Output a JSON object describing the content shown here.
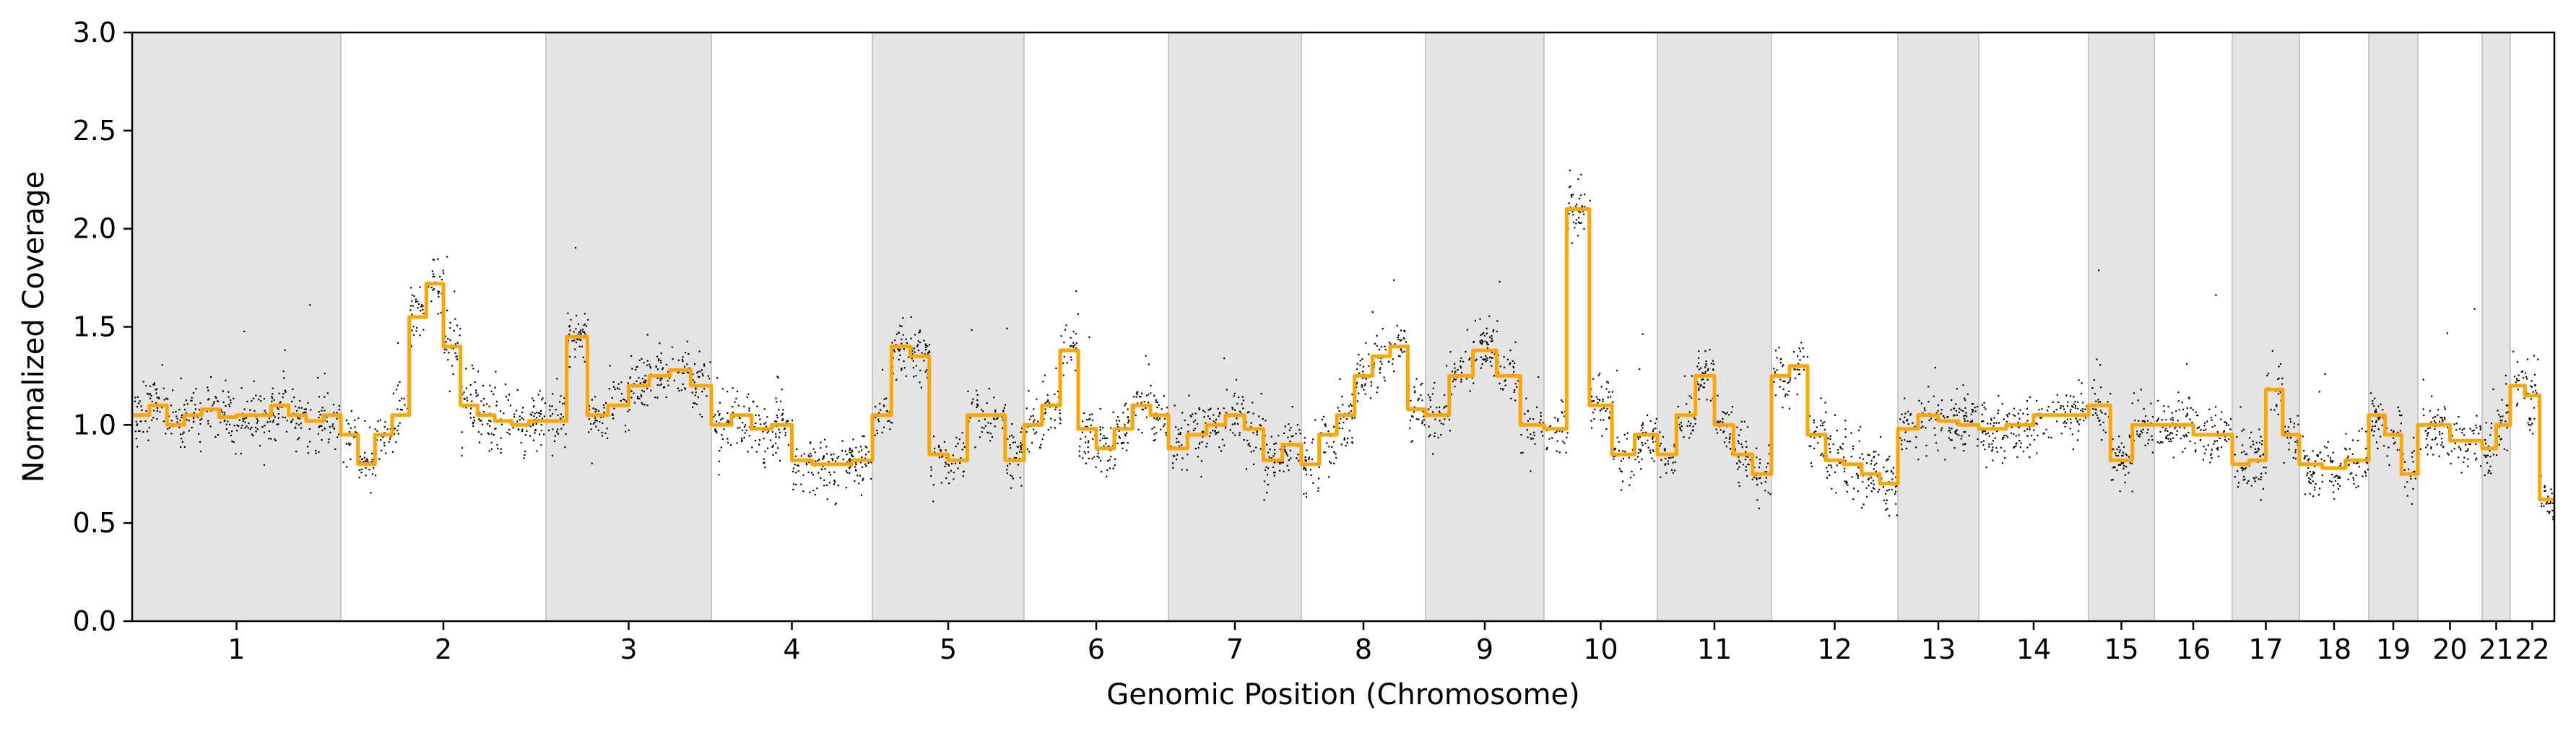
{
  "chart_data": {
    "type": "scatter",
    "title": "",
    "xlabel": "Genomic Position (Chromosome)",
    "ylabel": "Normalized Coverage",
    "ylim": [
      0.0,
      3.0
    ],
    "yticks": [
      "0.0",
      "0.5",
      "1.0",
      "1.5",
      "2.0",
      "2.5",
      "3.0"
    ],
    "grid": false,
    "legend": "none",
    "colors": {
      "points": "#000000",
      "segments": "#ffa500",
      "band": "#e4e4e4",
      "band_edge": "#c8c8c8"
    },
    "chromosomes": [
      {
        "label": "1",
        "shaded": true,
        "level": 1.05
      },
      {
        "label": "2",
        "shaded": false,
        "level": 1.1
      },
      {
        "label": "3",
        "shaded": true,
        "level": 1.15
      },
      {
        "label": "4",
        "shaded": false,
        "level": 0.88
      },
      {
        "label": "5",
        "shaded": true,
        "level": 1.0
      },
      {
        "label": "6",
        "shaded": false,
        "level": 1.0
      },
      {
        "label": "7",
        "shaded": true,
        "level": 0.92
      },
      {
        "label": "8",
        "shaded": false,
        "level": 1.15
      },
      {
        "label": "9",
        "shaded": true,
        "level": 1.15
      },
      {
        "label": "10",
        "shaded": false,
        "level": 1.0
      },
      {
        "label": "11",
        "shaded": true,
        "level": 0.95
      },
      {
        "label": "12",
        "shaded": false,
        "level": 0.9
      },
      {
        "label": "13",
        "shaded": true,
        "level": 1.0
      },
      {
        "label": "14",
        "shaded": false,
        "level": 1.02
      },
      {
        "label": "15",
        "shaded": true,
        "level": 1.0
      },
      {
        "label": "16",
        "shaded": false,
        "level": 0.82
      },
      {
        "label": "17",
        "shaded": true,
        "level": 1.0
      },
      {
        "label": "18",
        "shaded": false,
        "level": 0.82
      },
      {
        "label": "19",
        "shaded": true,
        "level": 0.95
      },
      {
        "label": "20",
        "shaded": false,
        "level": 0.95
      },
      {
        "label": "21",
        "shaded": true,
        "level": 1.0
      },
      {
        "label": "22",
        "shaded": false,
        "level": 1.1
      }
    ],
    "segments": [
      {
        "chrom": "1",
        "values": [
          1.05,
          1.1,
          1.0,
          1.05,
          1.08,
          1.04,
          1.05,
          1.05,
          1.1,
          1.05,
          1.02,
          1.05
        ]
      },
      {
        "chrom": "2",
        "values": [
          0.95,
          0.8,
          0.95,
          1.05,
          1.55,
          1.72,
          1.4,
          1.1,
          1.05,
          1.02,
          1.0,
          1.02
        ]
      },
      {
        "chrom": "3",
        "values": [
          1.02,
          1.45,
          1.05,
          1.1,
          1.2,
          1.25,
          1.28,
          1.2
        ]
      },
      {
        "chrom": "4",
        "values": [
          1.0,
          1.05,
          0.98,
          1.0,
          0.82,
          0.8,
          0.8,
          0.82
        ]
      },
      {
        "chrom": "5",
        "values": [
          1.05,
          1.4,
          1.35,
          0.85,
          0.82,
          1.05,
          1.05,
          0.82
        ]
      },
      {
        "chrom": "6",
        "values": [
          1.0,
          1.1,
          1.38,
          0.98,
          0.88,
          0.98,
          1.1,
          1.05
        ]
      },
      {
        "chrom": "7",
        "values": [
          0.88,
          0.95,
          1.0,
          1.05,
          0.98,
          0.82,
          0.9
        ]
      },
      {
        "chrom": "8",
        "values": [
          0.8,
          0.95,
          1.05,
          1.25,
          1.35,
          1.4,
          1.08
        ]
      },
      {
        "chrom": "9",
        "values": [
          1.05,
          1.25,
          1.38,
          1.25,
          1.0
        ]
      },
      {
        "chrom": "10",
        "values": [
          0.98,
          2.1,
          1.1,
          0.85,
          0.95
        ]
      },
      {
        "chrom": "11",
        "values": [
          0.85,
          1.05,
          1.25,
          1.0,
          0.85,
          0.75
        ]
      },
      {
        "chrom": "12",
        "values": [
          1.25,
          1.3,
          0.95,
          0.82,
          0.8,
          0.75,
          0.7
        ]
      },
      {
        "chrom": "13",
        "values": [
          0.98,
          1.05,
          1.02,
          1.0
        ]
      },
      {
        "chrom": "14",
        "values": [
          0.98,
          1.0,
          1.05,
          1.05
        ]
      },
      {
        "chrom": "15",
        "values": [
          1.1,
          0.82,
          1.0
        ]
      },
      {
        "chrom": "16",
        "values": [
          1.0,
          0.95
        ]
      },
      {
        "chrom": "17",
        "values": [
          0.8,
          0.82,
          1.18,
          0.95
        ]
      },
      {
        "chrom": "18",
        "values": [
          0.8,
          0.78,
          0.82
        ]
      },
      {
        "chrom": "19",
        "values": [
          1.05,
          0.95,
          0.75
        ]
      },
      {
        "chrom": "20",
        "values": [
          1.0,
          0.92
        ]
      },
      {
        "chrom": "21",
        "values": [
          0.88,
          1.0
        ]
      },
      {
        "chrom": "22",
        "values": [
          1.2,
          1.15,
          0.62
        ]
      }
    ]
  }
}
